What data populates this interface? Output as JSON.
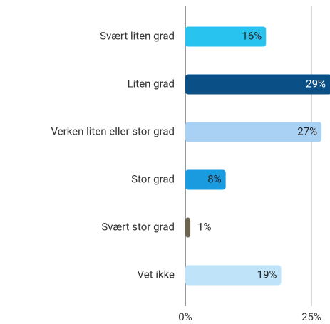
{
  "chart_data": {
    "type": "barh",
    "categories": [
      "Svært liten grad",
      "Liten grad",
      "Verken liten eller stor grad",
      "Stor grad",
      "Svært stor grad",
      "Vet ikke"
    ],
    "values": [
      16,
      29,
      27,
      8,
      1,
      19
    ],
    "value_labels": [
      "16%",
      "29%",
      "27%",
      "8%",
      "1%",
      "19%"
    ],
    "colors": [
      "#29c3f0",
      "#0a4f85",
      "#a9d1f3",
      "#1a9be0",
      "#6b6552",
      "#bfe4f9"
    ],
    "xlim": [
      0,
      25
    ],
    "xticks": [
      {
        "value": 0,
        "label": "0%"
      },
      {
        "value": 25,
        "label": "25%"
      }
    ],
    "grid": true
  }
}
